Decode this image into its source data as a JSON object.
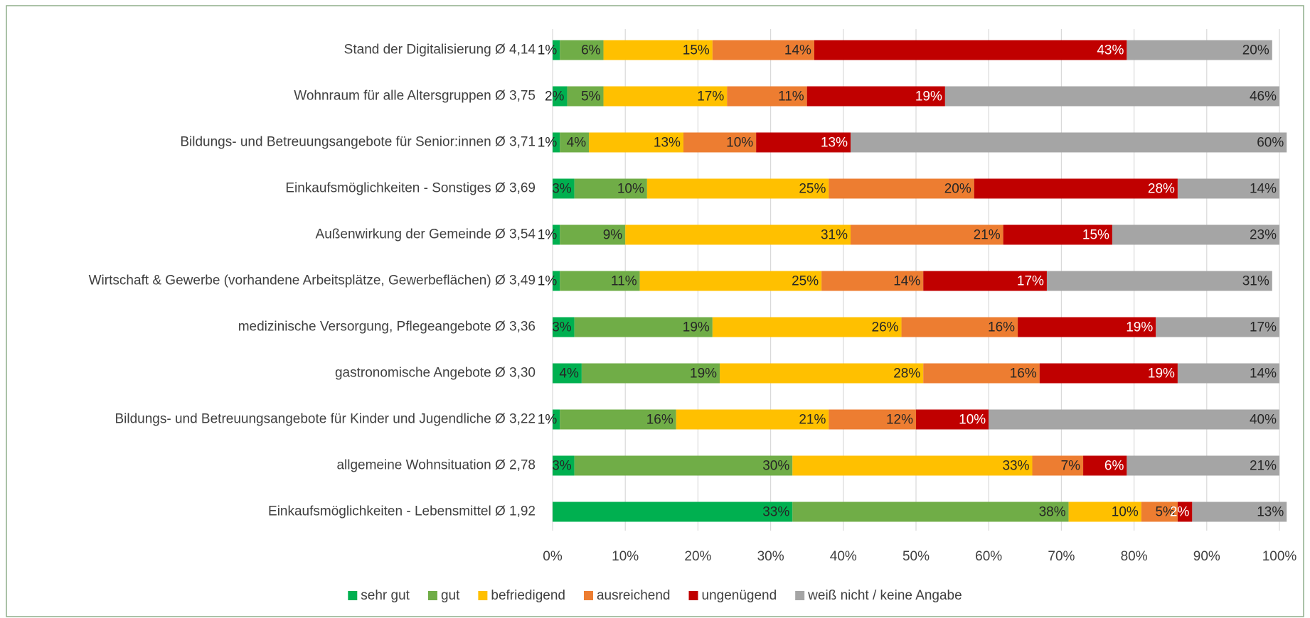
{
  "chart_data": {
    "type": "stacked_bar_horizontal",
    "categories": [
      "Stand der Digitalisierung Ø 4,14",
      "Wohnraum für alle Altersgruppen Ø 3,75",
      "Bildungs- und Betreuungsangebote für Senior:innen Ø 3,71",
      "Einkaufsmöglichkeiten - Sonstiges Ø 3,69",
      "Außenwirkung der Gemeinde Ø 3,54",
      "Wirtschaft & Gewerbe (vorhandene Arbeitsplätze, Gewerbeflächen) Ø 3,49",
      "medizinische Versorgung, Pflegeangebote Ø 3,36",
      "gastronomische Angebote Ø 3,30",
      "Bildungs- und Betreuungsangebote für Kinder und Jugendliche Ø 3,22",
      "allgemeine Wohnsituation Ø 2,78",
      "Einkaufsmöglichkeiten - Lebensmittel Ø 1,92"
    ],
    "series": [
      {
        "name": "sehr gut",
        "color": "#00b050",
        "values": [
          1,
          2,
          1,
          3,
          1,
          1,
          3,
          4,
          1,
          3,
          33
        ],
        "value_labels": [
          "1%",
          "2%",
          "1%",
          "3%",
          "1%",
          "1%",
          "3%",
          "4%",
          "1%",
          "3%",
          "33%"
        ]
      },
      {
        "name": "gut",
        "color": "#70ad47",
        "values": [
          6,
          5,
          4,
          10,
          9,
          11,
          19,
          19,
          16,
          30,
          38
        ],
        "value_labels": [
          "6%",
          "5%",
          "4%",
          "10%",
          "9%",
          "11%",
          "19%",
          "19%",
          "16%",
          "30%",
          "38%"
        ]
      },
      {
        "name": "befriedigend",
        "color": "#ffc000",
        "values": [
          15,
          17,
          13,
          25,
          31,
          25,
          26,
          28,
          21,
          33,
          10
        ],
        "value_labels": [
          "15%",
          "17%",
          "13%",
          "25%",
          "31%",
          "25%",
          "26%",
          "28%",
          "21%",
          "33%",
          "10%"
        ]
      },
      {
        "name": "ausreichend",
        "color": "#ed7d31",
        "values": [
          14,
          11,
          10,
          20,
          21,
          14,
          16,
          16,
          12,
          7,
          5
        ],
        "value_labels": [
          "14%",
          "11%",
          "10%",
          "20%",
          "21%",
          "14%",
          "16%",
          "16%",
          "12%",
          "7%",
          "5%"
        ]
      },
      {
        "name": "ungenügend",
        "color": "#c00000",
        "values": [
          43,
          19,
          13,
          28,
          15,
          17,
          19,
          19,
          10,
          6,
          2
        ],
        "value_labels": [
          "43%",
          "19%",
          "13%",
          "28%",
          "15%",
          "17%",
          "19%",
          "19%",
          "10%",
          "6%",
          "2%"
        ]
      },
      {
        "name": "weiß nicht / keine Angabe",
        "color": "#a5a5a5",
        "values": [
          20,
          46,
          60,
          14,
          23,
          31,
          17,
          14,
          40,
          21,
          13
        ],
        "value_labels": [
          "20%",
          "46%",
          "60%",
          "14%",
          "23%",
          "31%",
          "17%",
          "14%",
          "40%",
          "21%",
          "13%"
        ]
      }
    ],
    "xlim": [
      0,
      100
    ],
    "xticks": [
      {
        "value": 0,
        "label": "0%"
      },
      {
        "value": 10,
        "label": "10%"
      },
      {
        "value": 20,
        "label": "20%"
      },
      {
        "value": 30,
        "label": "30%"
      },
      {
        "value": 40,
        "label": "40%"
      },
      {
        "value": 50,
        "label": "50%"
      },
      {
        "value": 60,
        "label": "60%"
      },
      {
        "value": 70,
        "label": "70%"
      },
      {
        "value": 80,
        "label": "80%"
      },
      {
        "value": 90,
        "label": "90%"
      },
      {
        "value": 100,
        "label": "100%"
      }
    ],
    "grid": true,
    "legend": "bottom"
  }
}
